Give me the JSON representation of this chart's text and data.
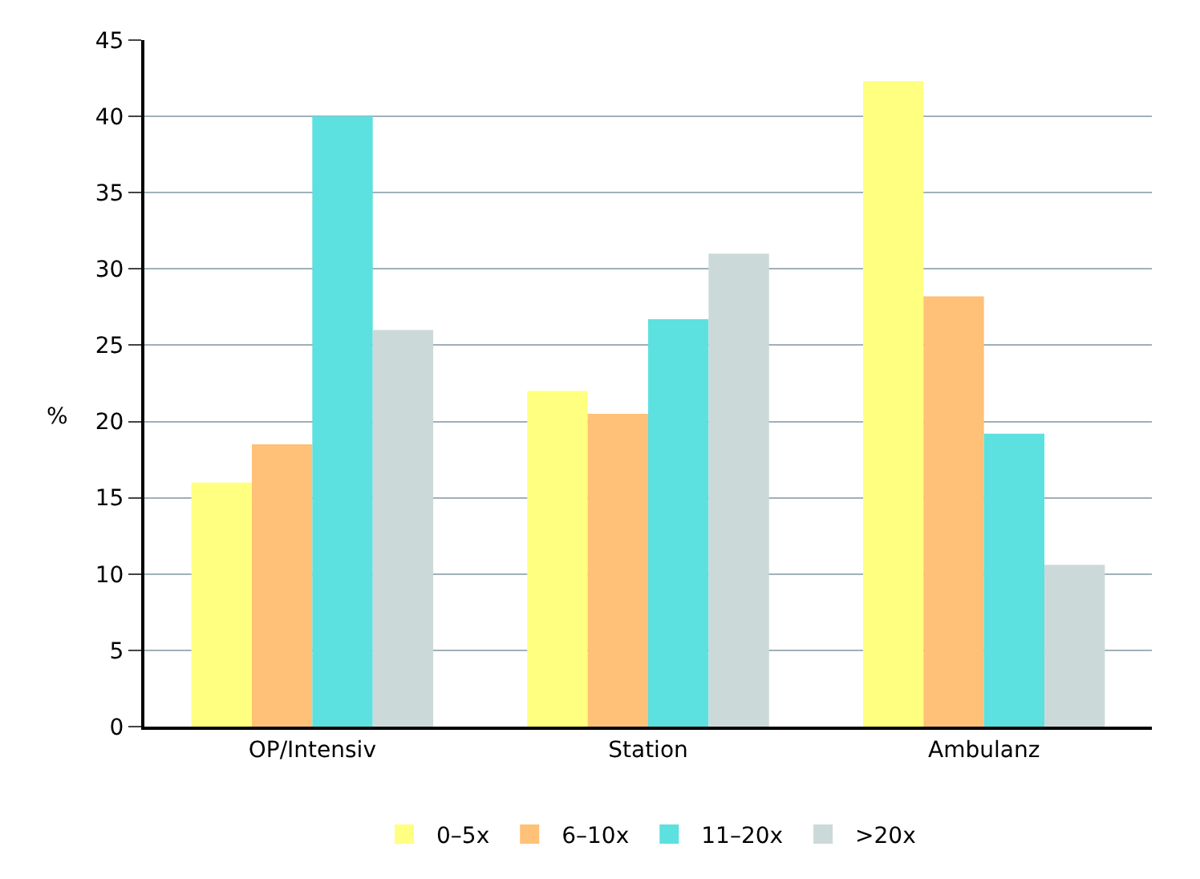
{
  "chart_data": {
    "type": "bar",
    "ylabel": "%",
    "categories": [
      "OP/Intensiv",
      "Station",
      "Ambulanz"
    ],
    "series": [
      {
        "name": "0–5x",
        "color": "#ffff80",
        "values": [
          16,
          22,
          42.3
        ]
      },
      {
        "name": "6–10x",
        "color": "#ffc078",
        "values": [
          18.5,
          20.5,
          28.2
        ]
      },
      {
        "name": "11–20x",
        "color": "#5ce0e0",
        "values": [
          40,
          26.7,
          19.2
        ]
      },
      {
        "name": ">20x",
        "color": "#ccd9d9",
        "values": [
          26,
          31,
          10.6
        ]
      }
    ],
    "ylim": [
      0,
      45
    ],
    "yticks": [
      0,
      5,
      10,
      15,
      20,
      25,
      30,
      35,
      40,
      45
    ],
    "grid": "y",
    "legend": "bottom"
  }
}
